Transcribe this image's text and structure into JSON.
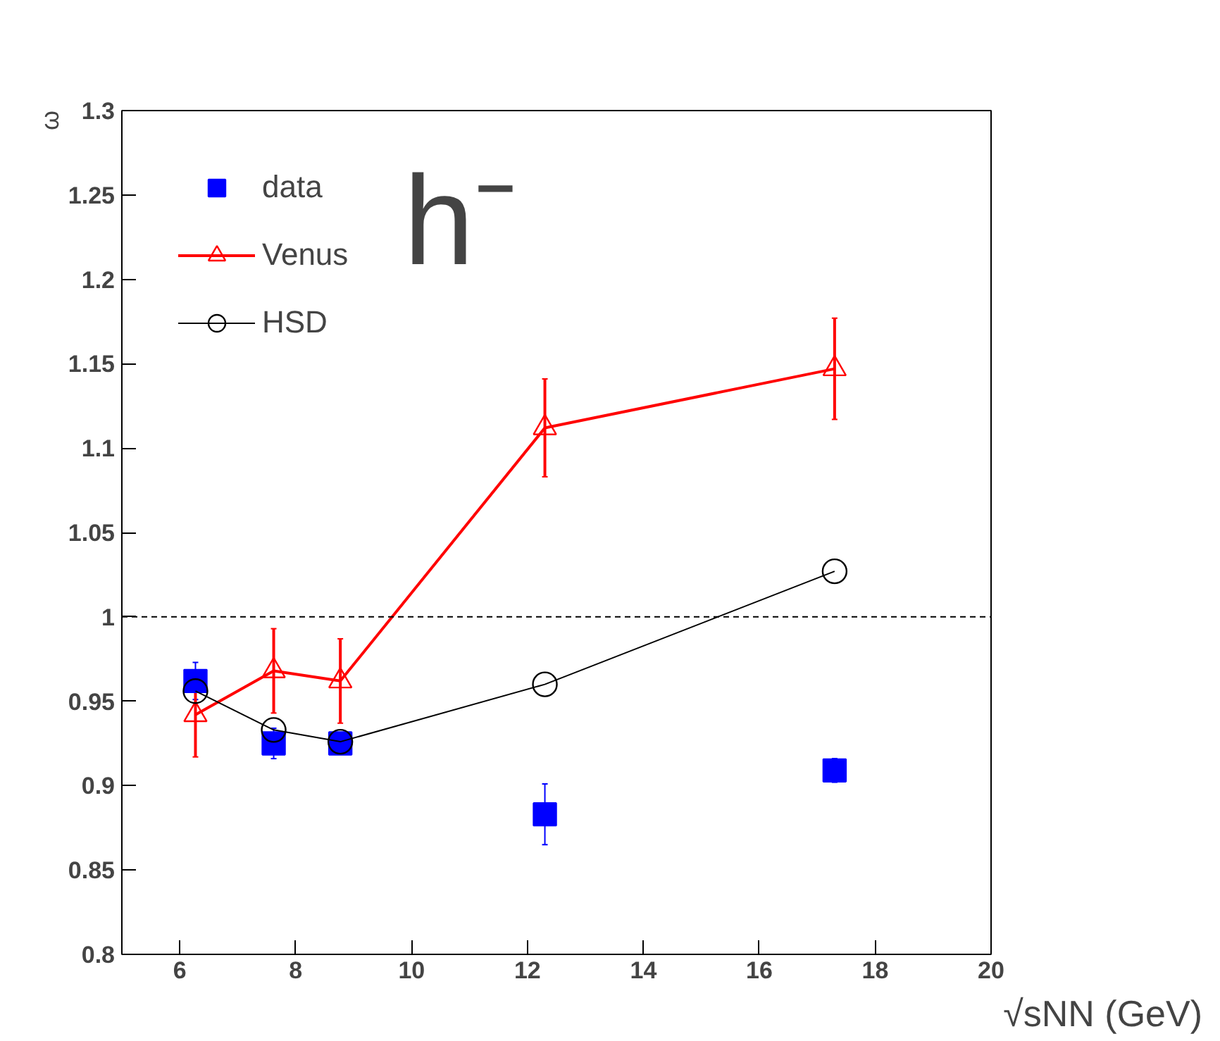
{
  "chart_data": {
    "type": "line",
    "xlabel": "√sNN (GeV)",
    "ylabel": "ω",
    "annotations": [
      "h⁻"
    ],
    "xlim": [
      5,
      20
    ],
    "xticks": [
      6,
      8,
      10,
      12,
      14,
      16,
      18,
      20
    ],
    "ylim": [
      0.8,
      1.3
    ],
    "yticks": [
      0.8,
      0.85,
      0.9,
      0.95,
      1,
      1.05,
      1.1,
      1.15,
      1.2,
      1.25,
      1.3
    ],
    "grid": false,
    "legend": "top left",
    "ref_lines": [
      {
        "axis": "y",
        "value": 1,
        "line_style": "dashed",
        "color": "#000000"
      }
    ],
    "series": [
      {
        "name": "data",
        "type": "scatter",
        "marker": "square",
        "color": "#0000ff",
        "x": [
          6.27,
          7.62,
          8.77,
          12.3,
          17.3
        ],
        "values": [
          0.962,
          0.925,
          0.925,
          0.883,
          0.909
        ],
        "errors": [
          0.011,
          0.009,
          0.005,
          0.018,
          0.007
        ]
      },
      {
        "name": "Venus",
        "marker": "triangle",
        "color": "#ff0000",
        "x": [
          6.27,
          7.62,
          8.77,
          12.3,
          17.3
        ],
        "values": [
          0.942,
          0.968,
          0.962,
          1.112,
          1.147
        ],
        "errors": [
          0.025,
          0.025,
          0.025,
          0.029,
          0.03
        ]
      },
      {
        "name": "HSD",
        "marker": "circle",
        "color": "#000000",
        "x": [
          6.27,
          7.62,
          8.77,
          12.3,
          17.3
        ],
        "values": [
          0.956,
          0.933,
          0.926,
          0.96,
          1.027
        ]
      }
    ]
  }
}
